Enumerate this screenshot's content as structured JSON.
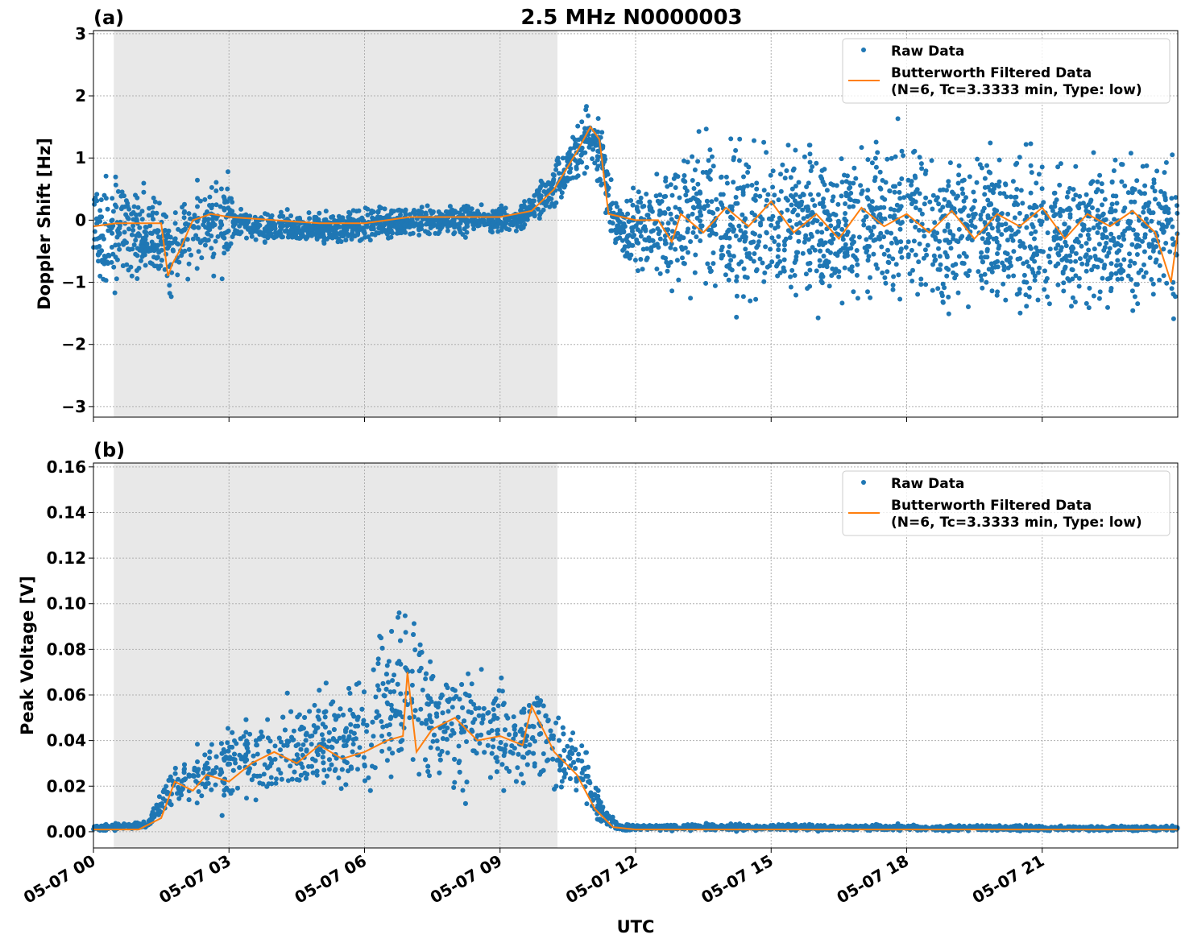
{
  "title": "2.5 MHz N0000003",
  "xlabel": "UTC",
  "x_tick_labels": [
    "05-07 00",
    "05-07 03",
    "05-07 06",
    "05-07 09",
    "05-07 12",
    "05-07 15",
    "05-07 18",
    "05-07 21"
  ],
  "colors": {
    "raw": "#1f77b4",
    "filtered": "#ff7f0e",
    "shade": "#e8e8e8",
    "grid": "#b0b0b0"
  },
  "chart_data": [
    {
      "type": "scatter",
      "panel_label": "(a)",
      "ylabel": "Doppler Shift [Hz]",
      "xlim_hours": [
        0,
        24
      ],
      "ylim": [
        -3.17,
        3.05
      ],
      "y_ticks": [
        -3,
        -2,
        -1,
        0,
        1,
        2,
        3
      ],
      "y_tick_labels": [
        "−3",
        "−2",
        "−1",
        "0",
        "1",
        "2",
        "3"
      ],
      "grid": true,
      "legend_placement": "top-right",
      "legend": [
        "Raw Data",
        "Butterworth Filtered Data",
        "(N=6, Tc=3.3333 min, Type: low)"
      ],
      "shaded_interval_hours": [
        0.45,
        10.27
      ],
      "raw_envelope": {
        "x_hours": [
          0,
          1.6,
          1.7,
          1.9,
          2.5,
          3.0,
          3.1,
          5,
          6,
          8,
          9.3,
          9.8,
          10.5,
          11.0,
          11.3,
          11.5,
          12,
          12.7,
          13,
          18,
          24
        ],
        "lower": [
          -1.3,
          -1.2,
          -1.6,
          -1.1,
          -1.0,
          -1.0,
          -0.4,
          -0.5,
          -0.4,
          -0.3,
          -0.3,
          -0.1,
          0.3,
          0.7,
          0.2,
          -0.6,
          -1.0,
          -1.3,
          -1.7,
          -1.8,
          -1.9
        ],
        "upper": [
          0.9,
          0.6,
          0.2,
          0.6,
          0.9,
          1.2,
          0.3,
          0.2,
          0.25,
          0.3,
          0.3,
          0.6,
          1.4,
          2.1,
          1.8,
          0.5,
          0.7,
          1.2,
          1.6,
          1.6,
          1.5
        ]
      },
      "filtered": {
        "x_hours": [
          0,
          0.5,
          1.0,
          1.5,
          1.65,
          1.75,
          1.9,
          2.2,
          2.6,
          3.0,
          4,
          5,
          6,
          7,
          8,
          9,
          9.7,
          10.2,
          10.7,
          11.0,
          11.2,
          11.4,
          12,
          12.5,
          12.8,
          13.0,
          13.5,
          14.0,
          14.5,
          15.0,
          15.5,
          16.0,
          16.5,
          17.0,
          17.5,
          18.0,
          18.5,
          19.0,
          19.5,
          20.0,
          20.5,
          21.0,
          21.5,
          22.0,
          22.5,
          23.0,
          23.5,
          23.85,
          24
        ],
        "values": [
          -0.1,
          -0.05,
          -0.05,
          -0.05,
          -0.9,
          -0.7,
          -0.5,
          0.0,
          0.1,
          0.05,
          0.0,
          -0.05,
          -0.05,
          0.05,
          0.05,
          0.05,
          0.15,
          0.5,
          1.1,
          1.5,
          1.3,
          0.1,
          0.0,
          0.0,
          -0.35,
          0.1,
          -0.2,
          0.2,
          -0.1,
          0.3,
          -0.2,
          0.1,
          -0.3,
          0.2,
          -0.1,
          0.1,
          -0.2,
          0.15,
          -0.3,
          0.1,
          -0.1,
          0.2,
          -0.3,
          0.1,
          -0.1,
          0.15,
          -0.2,
          -1.0,
          -0.2
        ]
      }
    },
    {
      "type": "scatter",
      "panel_label": "(b)",
      "ylabel": "Peak Voltage [V]",
      "xlim_hours": [
        0,
        24
      ],
      "ylim": [
        -0.0071,
        0.1617
      ],
      "y_ticks": [
        0,
        0.02,
        0.04,
        0.06,
        0.08,
        0.1,
        0.12,
        0.14,
        0.16
      ],
      "y_tick_labels": [
        "0.00",
        "0.02",
        "0.04",
        "0.06",
        "0.08",
        "0.10",
        "0.12",
        "0.14",
        "0.16"
      ],
      "grid": true,
      "legend_placement": "top-right",
      "legend": [
        "Raw Data",
        "Butterworth Filtered Data",
        "(N=6, Tc=3.3333 min, Type: low)"
      ],
      "shaded_interval_hours": [
        0.45,
        10.27
      ],
      "raw_envelope": {
        "x_hours": [
          0,
          1.2,
          1.7,
          2.5,
          3,
          4,
          5,
          6,
          6.9,
          7.5,
          8,
          9,
          10,
          10.8,
          11.2,
          11.6,
          24
        ],
        "lower": [
          0,
          0.001,
          0.008,
          0.008,
          0.005,
          0.005,
          0.008,
          0.01,
          0.01,
          0.01,
          0.01,
          0.01,
          0.015,
          0.01,
          0.002,
          0,
          0
        ],
        "upper": [
          0.003,
          0.005,
          0.03,
          0.045,
          0.055,
          0.065,
          0.07,
          0.075,
          0.12,
          0.09,
          0.08,
          0.075,
          0.07,
          0.045,
          0.02,
          0.004,
          0.003
        ]
      },
      "filtered": {
        "x_hours": [
          0,
          1.0,
          1.5,
          1.8,
          2.2,
          2.5,
          3.0,
          3.5,
          4.0,
          4.5,
          5.0,
          5.5,
          6.0,
          6.5,
          6.85,
          6.95,
          7.15,
          7.5,
          8.0,
          8.5,
          9.0,
          9.5,
          9.7,
          10.2,
          10.7,
          11.1,
          11.5,
          12,
          24
        ],
        "values": [
          0.001,
          0.001,
          0.006,
          0.022,
          0.018,
          0.025,
          0.022,
          0.03,
          0.035,
          0.03,
          0.038,
          0.032,
          0.035,
          0.04,
          0.042,
          0.07,
          0.035,
          0.045,
          0.05,
          0.04,
          0.042,
          0.038,
          0.055,
          0.035,
          0.025,
          0.01,
          0.002,
          0.001,
          0.001
        ]
      }
    }
  ]
}
